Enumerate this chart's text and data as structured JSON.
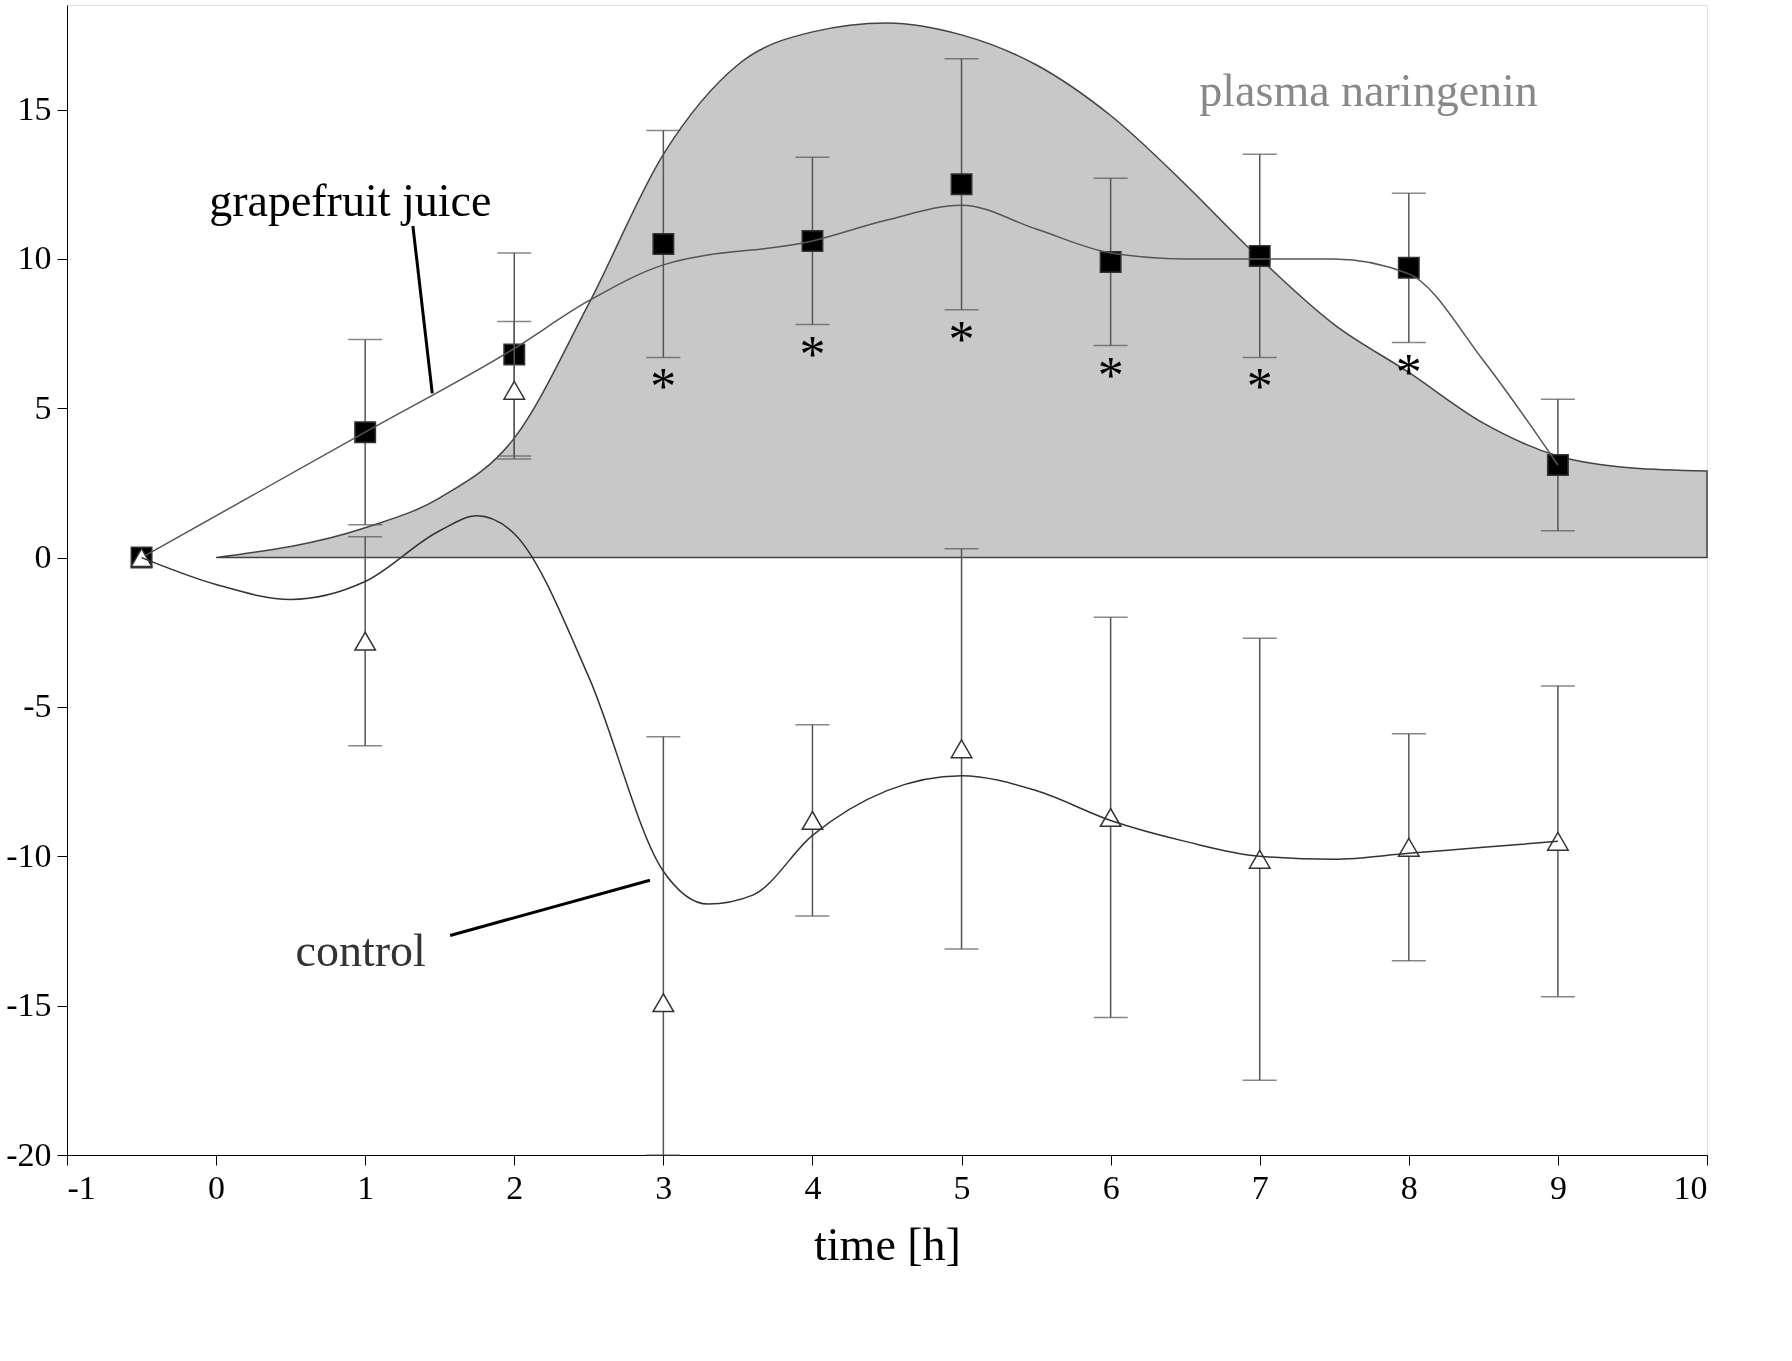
{
  "chart_data": {
    "type": "scatter",
    "xlabel": "time [h]",
    "xlim": [
      -1,
      10
    ],
    "ylim": [
      -20,
      18.5
    ],
    "xticks": [
      -1,
      0,
      1,
      2,
      3,
      4,
      5,
      6,
      7,
      8,
      9,
      10
    ],
    "yticks": [
      -20,
      -15,
      -10,
      -5,
      0,
      5,
      10,
      15
    ],
    "grid": false,
    "series": [
      {
        "name": "plasma naringenin",
        "type": "area",
        "color": "#c8c8c8",
        "x": [
          0,
          1,
          1.5,
          2,
          2.5,
          3,
          3.5,
          4,
          4.5,
          5,
          5.5,
          6,
          6.5,
          6.9,
          7.5,
          8,
          8.5,
          9,
          9.5,
          10
        ],
        "values": [
          0,
          1.0,
          2.0,
          4.0,
          8.5,
          13.5,
          16.5,
          17.6,
          17.9,
          17.5,
          16.5,
          14.8,
          12.5,
          10.5,
          7.8,
          6.2,
          4.5,
          3.4,
          3.0,
          2.9
        ]
      },
      {
        "name": "grapefruit juice",
        "marker": "square",
        "color": "#000000",
        "x": [
          -0.5,
          1,
          2,
          3,
          4,
          5,
          6,
          7,
          8,
          9
        ],
        "values": [
          0,
          4.2,
          6.8,
          10.5,
          10.6,
          12.5,
          9.9,
          10.1,
          9.7,
          3.1
        ],
        "errors": [
          null,
          3.1,
          3.4,
          3.8,
          2.8,
          4.2,
          2.8,
          3.4,
          2.5,
          2.2
        ]
      },
      {
        "type": "line",
        "color": "#555555",
        "x": [
          -0.5,
          1,
          2,
          2.5,
          3,
          4,
          4.5,
          5,
          5.5,
          6,
          6.5,
          7,
          7.5,
          8,
          8.5,
          9
        ],
        "values": [
          0,
          4.2,
          7.0,
          8.6,
          9.8,
          10.6,
          11.3,
          11.8,
          11.0,
          10.2,
          10.0,
          10.0,
          10.0,
          9.5,
          6.6,
          3.1
        ]
      },
      {
        "marker": "triangle",
        "color": "#ffffff",
        "x": [
          -0.5,
          1,
          2,
          3,
          4,
          5,
          6,
          7,
          8,
          9
        ],
        "values": [
          0,
          -2.8,
          5.6,
          -14.9,
          -8.8,
          -6.4,
          -8.7,
          -10.1,
          -9.7,
          -9.5
        ],
        "errors": [
          null,
          3.5,
          2.3,
          [
            -20,
            -6.0
          ],
          3.2,
          6.7,
          6.7,
          7.4,
          3.8,
          5.2
        ]
      },
      {
        "name": "control",
        "type": "line",
        "color": "#333333",
        "x": [
          -0.5,
          0,
          0.5,
          1,
          1.5,
          1.75,
          2,
          2.5,
          3,
          3.3,
          3.6,
          4,
          4.5,
          5,
          5.5,
          6,
          6.5,
          7,
          7.5,
          8,
          8.5,
          9
        ],
        "values": [
          0,
          -0.9,
          -1.4,
          -0.8,
          0.9,
          1.4,
          0.8,
          -4,
          -10.5,
          -11.6,
          -11.3,
          -9.3,
          -7.8,
          -7.3,
          -7.8,
          -8.8,
          -9.5,
          -10,
          -10.1,
          -9.9,
          -9.7,
          -9.5
        ]
      }
    ],
    "annotations": [
      {
        "text": "*",
        "x": 3,
        "y": 6.7
      },
      {
        "text": "*",
        "x": 4,
        "y": 7.8
      },
      {
        "text": "*",
        "x": 5,
        "y": 8.3
      },
      {
        "text": "*",
        "x": 6,
        "y": 7.1
      },
      {
        "text": "*",
        "x": 7,
        "y": 6.7
      },
      {
        "text": "*",
        "x": 8,
        "y": 7.2
      }
    ]
  }
}
